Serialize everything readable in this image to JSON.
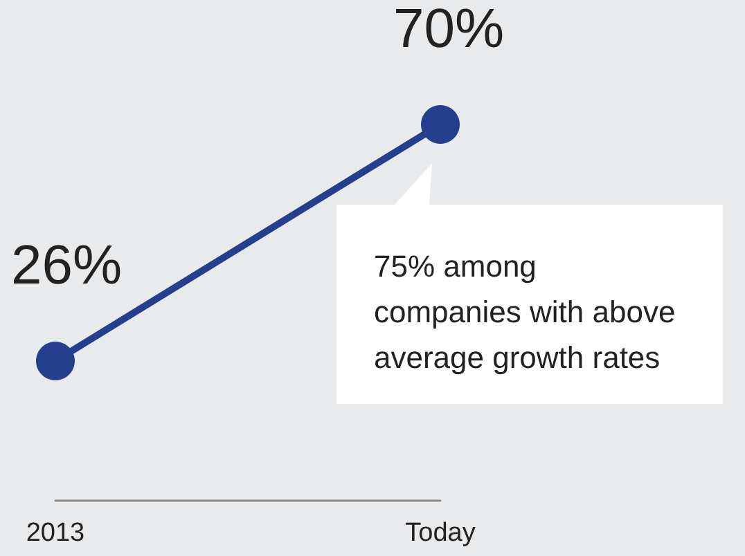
{
  "chart_data": {
    "type": "line",
    "categories": [
      "2013",
      "Today"
    ],
    "values": [
      26,
      70
    ],
    "value_labels": [
      "26%",
      "70%"
    ],
    "color": "#243f8e",
    "marker": "circle",
    "tick_labels": "x",
    "grid": false,
    "annotations": [
      "75% among\ncompanies with above\naverage growth rates"
    ]
  }
}
